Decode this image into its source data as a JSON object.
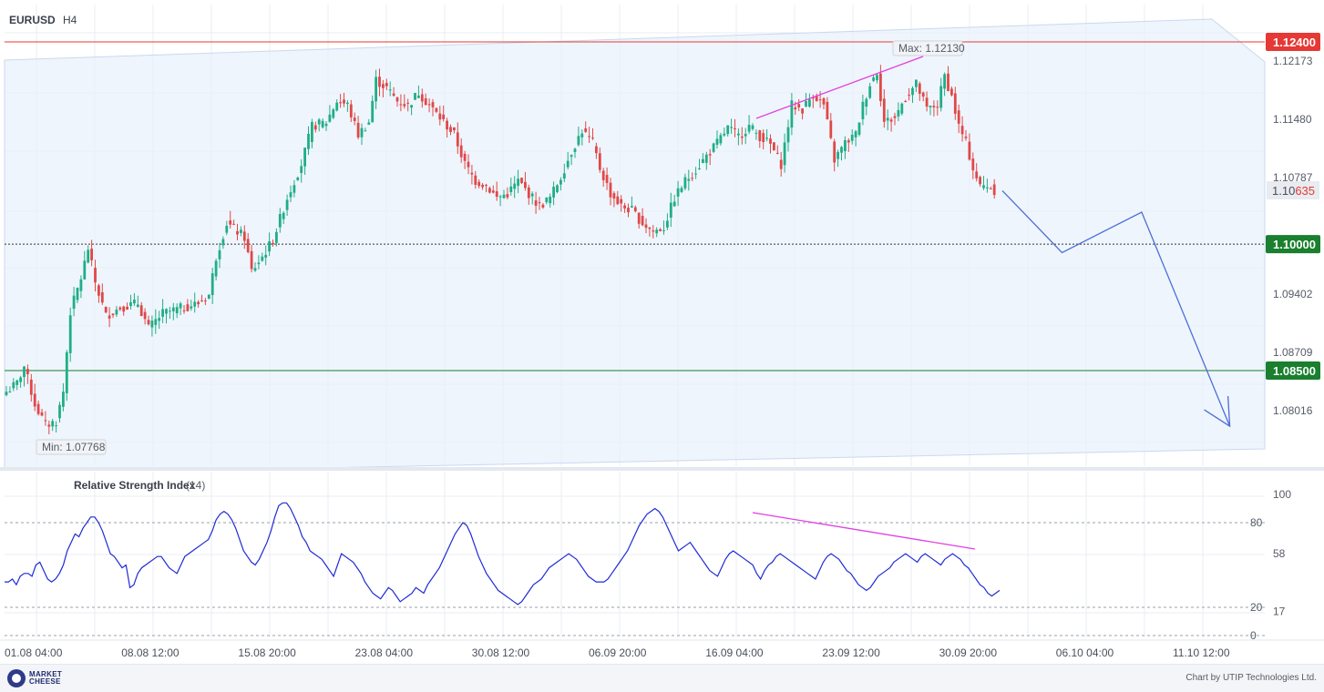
{
  "chart_data": {
    "type": "candlestick",
    "symbol": "EURUSD",
    "timeframe": "H4",
    "price_axis": {
      "ticks": [
        "1.12173",
        "1.11480",
        "1.10787",
        "1.09402",
        "1.08709",
        "1.08016"
      ],
      "range": [
        1.073,
        1.129
      ]
    },
    "levels": [
      {
        "value": 1.124,
        "label": "1.12400",
        "color": "#e53935",
        "style": "solid"
      },
      {
        "value": 1.1,
        "label": "1.10000",
        "color": "#1a7f2e",
        "style": "dotted"
      },
      {
        "value": 1.085,
        "label": "1.08500",
        "color": "#1a7f2e",
        "style": "solid"
      }
    ],
    "current_price": {
      "value": 1.10635,
      "label_prefix": "1.10",
      "label_suffix": "635"
    },
    "max_label": "Max: 1.12130",
    "min_label": "Min: 1.07768",
    "time_labels": [
      "01.08 04:00",
      "08.08 12:00",
      "15.08 20:00",
      "23.08 04:00",
      "30.08 12:00",
      "06.09 20:00",
      "16.09 04:00",
      "23.09 12:00",
      "30.09 20:00",
      "06.10 04:00",
      "11.10 12:00"
    ],
    "waypoints": [
      [
        0,
        1.0825
      ],
      [
        3,
        1.0835
      ],
      [
        5,
        1.0855
      ],
      [
        8,
        1.081
      ],
      [
        11,
        1.0785
      ],
      [
        14,
        1.079
      ],
      [
        16,
        1.0825
      ],
      [
        18,
        1.092
      ],
      [
        21,
        1.096
      ],
      [
        23,
        1.0995
      ],
      [
        25,
        1.0955
      ],
      [
        28,
        1.0915
      ],
      [
        32,
        1.0925
      ],
      [
        37,
        1.093
      ],
      [
        40,
        1.09
      ],
      [
        44,
        1.0918
      ],
      [
        50,
        1.0925
      ],
      [
        54,
        1.093
      ],
      [
        57,
        1.094
      ],
      [
        59,
        1.0985
      ],
      [
        62,
        1.1025
      ],
      [
        65,
        1.1015
      ],
      [
        67,
        1.1008
      ],
      [
        69,
        1.0968
      ],
      [
        72,
        1.0985
      ],
      [
        75,
        1.1005
      ],
      [
        79,
        1.1055
      ],
      [
        83,
        1.1095
      ],
      [
        86,
        1.114
      ],
      [
        90,
        1.1145
      ],
      [
        93,
        1.117
      ],
      [
        96,
        1.1165
      ],
      [
        99,
        1.113
      ],
      [
        102,
        1.1145
      ],
      [
        104,
        1.1195
      ],
      [
        107,
        1.1185
      ],
      [
        110,
        1.117
      ],
      [
        113,
        1.1165
      ],
      [
        116,
        1.118
      ],
      [
        119,
        1.1165
      ],
      [
        122,
        1.115
      ],
      [
        126,
        1.113
      ],
      [
        129,
        1.1095
      ],
      [
        132,
        1.1075
      ],
      [
        135,
        1.107
      ],
      [
        138,
        1.1055
      ],
      [
        141,
        1.106
      ],
      [
        144,
        1.1075
      ],
      [
        147,
        1.106
      ],
      [
        150,
        1.1045
      ],
      [
        153,
        1.1055
      ],
      [
        156,
        1.108
      ],
      [
        159,
        1.111
      ],
      [
        162,
        1.1135
      ],
      [
        165,
        1.112
      ],
      [
        167,
        1.109
      ],
      [
        170,
        1.106
      ],
      [
        173,
        1.1045
      ],
      [
        176,
        1.104
      ],
      [
        179,
        1.1025
      ],
      [
        182,
        1.1015
      ],
      [
        185,
        1.102
      ],
      [
        188,
        1.1055
      ],
      [
        191,
        1.1075
      ],
      [
        194,
        1.1088
      ],
      [
        197,
        1.1105
      ],
      [
        200,
        1.112
      ],
      [
        203,
        1.1138
      ],
      [
        206,
        1.1128
      ],
      [
        209,
        1.114
      ],
      [
        212,
        1.1128
      ],
      [
        215,
        1.1118
      ],
      [
        218,
        1.1095
      ],
      [
        221,
        1.1165
      ],
      [
        224,
        1.116
      ],
      [
        227,
        1.1178
      ],
      [
        230,
        1.1165
      ],
      [
        233,
        1.11
      ],
      [
        236,
        1.112
      ],
      [
        239,
        1.113
      ],
      [
        241,
        1.1165
      ],
      [
        243,
        1.119
      ],
      [
        245,
        1.1205
      ],
      [
        247,
        1.1145
      ],
      [
        250,
        1.115
      ],
      [
        253,
        1.1175
      ],
      [
        256,
        1.119
      ],
      [
        259,
        1.116
      ],
      [
        262,
        1.1165
      ],
      [
        264,
        1.12
      ],
      [
        266,
        1.1175
      ],
      [
        268,
        1.114
      ],
      [
        270,
        1.112
      ],
      [
        272,
        1.109
      ],
      [
        274,
        1.1068
      ],
      [
        276,
        1.107
      ],
      [
        278,
        1.1064
      ]
    ],
    "forecast_path": [
      [
        1.10635,
        0
      ],
      [
        1.099,
        42
      ],
      [
        1.1038,
        98
      ],
      [
        1.0784,
        160
      ]
    ],
    "rsi": {
      "title": "Relative Strength Index",
      "period": "(14)",
      "ticks": [
        "100",
        "58",
        "17"
      ],
      "levels": [
        {
          "value": 80,
          "label": "80"
        },
        {
          "value": 20,
          "label": "20"
        },
        {
          "value": 0,
          "label": "0"
        }
      ],
      "values": [
        38,
        38,
        40,
        36,
        42,
        44,
        44,
        42,
        50,
        52,
        46,
        40,
        38,
        40,
        44,
        50,
        60,
        66,
        72,
        70,
        76,
        80,
        84,
        84,
        80,
        74,
        66,
        58,
        56,
        52,
        48,
        50,
        34,
        36,
        44,
        48,
        50,
        52,
        54,
        56,
        56,
        52,
        48,
        46,
        44,
        50,
        56,
        58,
        60,
        62,
        64,
        66,
        68,
        74,
        82,
        86,
        88,
        86,
        82,
        76,
        68,
        60,
        56,
        52,
        50,
        54,
        60,
        66,
        74,
        84,
        92,
        94,
        94,
        90,
        84,
        78,
        70,
        66,
        60,
        58,
        56,
        54,
        50,
        46,
        42,
        50,
        58,
        56,
        54,
        52,
        48,
        44,
        38,
        34,
        30,
        28,
        26,
        30,
        34,
        32,
        28,
        24,
        26,
        28,
        30,
        34,
        32,
        30,
        36,
        40,
        44,
        48,
        54,
        60,
        66,
        72,
        76,
        80,
        78,
        72,
        64,
        56,
        50,
        44,
        40,
        36,
        32,
        30,
        28,
        26,
        24,
        22,
        24,
        28,
        32,
        36,
        38,
        40,
        44,
        48,
        50,
        52,
        54,
        56,
        58,
        56,
        54,
        50,
        46,
        42,
        40,
        38,
        38,
        38,
        40,
        44,
        48,
        52,
        56,
        60,
        66,
        72,
        78,
        82,
        86,
        88,
        90,
        88,
        84,
        78,
        72,
        66,
        60,
        62,
        64,
        66,
        62,
        58,
        54,
        50,
        46,
        44,
        42,
        48,
        54,
        58,
        60,
        58,
        56,
        54,
        52,
        50,
        44,
        40,
        46,
        50,
        52,
        56,
        58,
        56,
        54,
        52,
        50,
        48,
        46,
        44,
        42,
        40,
        46,
        52,
        56,
        58,
        56,
        54,
        50,
        46,
        44,
        40,
        36,
        34,
        32,
        34,
        38,
        42,
        44,
        46,
        48,
        52,
        54,
        56,
        58,
        56,
        54,
        52,
        56,
        58,
        56,
        54,
        52,
        50,
        54,
        56,
        58,
        56,
        54,
        50,
        48,
        44,
        40,
        36,
        34,
        30,
        28,
        30,
        32
      ]
    }
  },
  "footer": {
    "logo_text": "MARKET CHEESE",
    "credit": "Chart by UTIP Technologies Ltd."
  }
}
